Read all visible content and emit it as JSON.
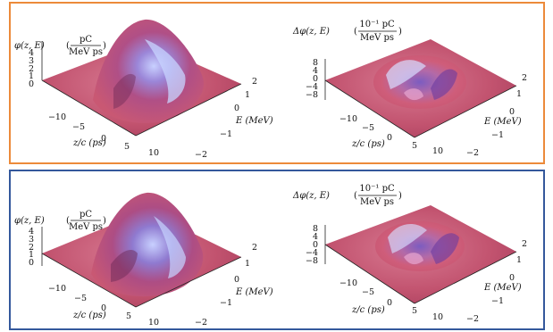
{
  "panels": [
    {
      "border_color": "#ec8a3a",
      "left": {
        "zlabel_sym": "φ(z, E)",
        "zlabel_num": "pC",
        "zlabel_den": "MeV ps",
        "zticks": [
          "4",
          "3",
          "2",
          "1",
          "0"
        ],
        "xticks": [
          "−10",
          "−5",
          "0",
          "5",
          "10"
        ],
        "xlabel": "z/c (ps)",
        "yticks": [
          "2",
          "1",
          "0",
          "−1",
          "−2"
        ],
        "ylabel": "E (MeV)"
      },
      "right": {
        "zlabel_sym": "Δφ(z, E)",
        "zlabel_num": "10⁻¹ pC",
        "zlabel_den": "MeV ps",
        "zticks": [
          "8",
          "4",
          "0",
          "−4",
          "−8"
        ],
        "xticks": [
          "−10",
          "−5",
          "0",
          "5",
          "10"
        ],
        "xlabel": "z/c (ps)",
        "yticks": [
          "2",
          "1",
          "0",
          "−1",
          "−2"
        ],
        "ylabel": "E (MeV)"
      }
    },
    {
      "border_color": "#34589c",
      "left": {
        "zlabel_sym": "φ(z, E)",
        "zlabel_num": "pC",
        "zlabel_den": "MeV ps",
        "zticks": [
          "4",
          "3",
          "2",
          "1",
          "0"
        ],
        "xticks": [
          "−10",
          "−5",
          "0",
          "5",
          "10"
        ],
        "xlabel": "z/c (ps)",
        "yticks": [
          "2",
          "1",
          "0",
          "−1",
          "−2"
        ],
        "ylabel": "E (MeV)"
      },
      "right": {
        "zlabel_sym": "Δφ(z, E)",
        "zlabel_num": "10⁻¹ pC",
        "zlabel_den": "MeV ps",
        "zticks": [
          "8",
          "4",
          "0",
          "−4",
          "−8"
        ],
        "xticks": [
          "−10",
          "−5",
          "0",
          "5",
          "10"
        ],
        "xlabel": "z/c (ps)",
        "yticks": [
          "2",
          "1",
          "0",
          "−1",
          "−2"
        ],
        "ylabel": "E (MeV)"
      }
    }
  ],
  "colors": {
    "surface": "#c14a6a",
    "highlight": "#a9b8f0",
    "shadow": "#5a1f45"
  }
}
